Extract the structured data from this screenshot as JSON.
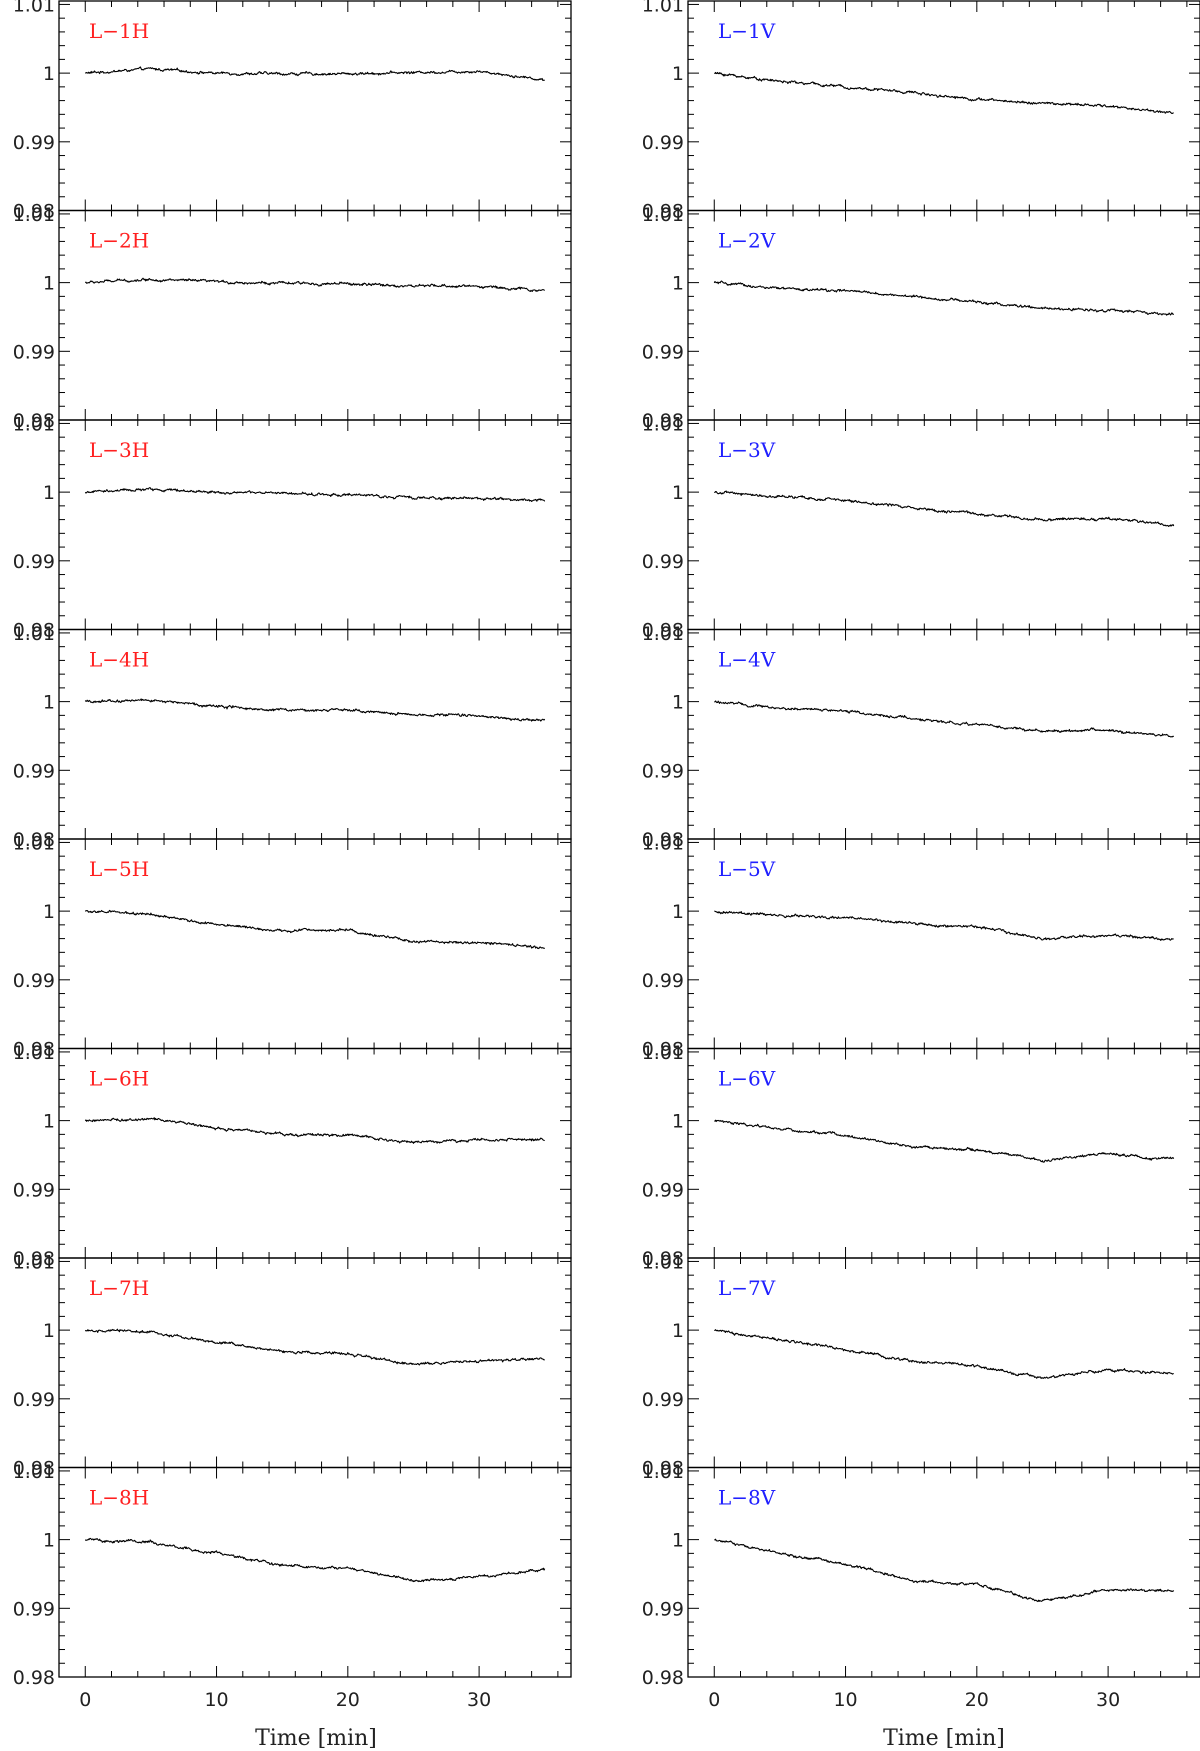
{
  "chart_data": {
    "type": "line",
    "columns": 2,
    "rows": 8,
    "xlim": [
      -2,
      37
    ],
    "ylim": [
      0.98,
      1.0105
    ],
    "x_ticks": [
      "0",
      "10",
      "20",
      "30"
    ],
    "x_tick_values": [
      0,
      10,
      20,
      30
    ],
    "y_ticks": [
      "1.01",
      "1",
      "0.99",
      "0.98"
    ],
    "y_tick_values": [
      1.01,
      1.0,
      0.99,
      0.98
    ],
    "x_axis_labels": [
      "Time [min]",
      "Time [min]"
    ],
    "label_colors": {
      "H": "#ff2020",
      "V": "#2020ff"
    },
    "line_color": "#000000",
    "panels": [
      {
        "label": "L−1H",
        "column": 0,
        "row": 0,
        "x": [
          0,
          5,
          10,
          15,
          20,
          25,
          30,
          35
        ],
        "y": [
          1.0,
          1.0006,
          1.0,
          0.9999,
          0.9999,
          1.0001,
          1.0003,
          0.999
        ]
      },
      {
        "label": "L−1V",
        "column": 1,
        "row": 0,
        "x": [
          0,
          5,
          10,
          15,
          20,
          25,
          30,
          35
        ],
        "y": [
          1.0,
          0.9988,
          0.998,
          0.9972,
          0.9962,
          0.9956,
          0.9952,
          0.9942
        ]
      },
      {
        "label": "L−2H",
        "column": 0,
        "row": 1,
        "x": [
          0,
          5,
          10,
          15,
          20,
          25,
          30,
          35
        ],
        "y": [
          1.0,
          1.0005,
          1.0001,
          0.9999,
          0.9998,
          0.9995,
          0.9995,
          0.9988
        ]
      },
      {
        "label": "L−2V",
        "column": 1,
        "row": 1,
        "x": [
          0,
          5,
          10,
          15,
          20,
          25,
          30,
          35
        ],
        "y": [
          1.0,
          0.9991,
          0.9988,
          0.998,
          0.9972,
          0.9962,
          0.996,
          0.9953
        ]
      },
      {
        "label": "L−3H",
        "column": 0,
        "row": 2,
        "x": [
          0,
          5,
          10,
          15,
          20,
          25,
          30,
          35
        ],
        "y": [
          1.0,
          1.0004,
          1.0,
          0.9998,
          0.9996,
          0.9992,
          0.9991,
          0.9988
        ]
      },
      {
        "label": "L−3V",
        "column": 1,
        "row": 2,
        "x": [
          0,
          5,
          10,
          15,
          20,
          25,
          30,
          35
        ],
        "y": [
          1.0,
          0.9993,
          0.9988,
          0.9978,
          0.9968,
          0.996,
          0.9962,
          0.9952
        ]
      },
      {
        "label": "L−4H",
        "column": 0,
        "row": 3,
        "x": [
          0,
          5,
          10,
          15,
          20,
          25,
          30,
          35
        ],
        "y": [
          1.0,
          1.0002,
          0.9994,
          0.9988,
          0.9987,
          0.998,
          0.998,
          0.9972
        ]
      },
      {
        "label": "L−4V",
        "column": 1,
        "row": 3,
        "x": [
          0,
          5,
          10,
          15,
          20,
          25,
          30,
          35
        ],
        "y": [
          1.0,
          0.999,
          0.9987,
          0.9975,
          0.9967,
          0.9957,
          0.9958,
          0.995
        ]
      },
      {
        "label": "L−5H",
        "column": 0,
        "row": 4,
        "x": [
          0,
          5,
          10,
          15,
          20,
          25,
          30,
          35
        ],
        "y": [
          1.0,
          0.9995,
          0.998,
          0.9972,
          0.9973,
          0.9955,
          0.9955,
          0.9946
        ]
      },
      {
        "label": "L−5V",
        "column": 1,
        "row": 4,
        "x": [
          0,
          5,
          10,
          15,
          20,
          25,
          30,
          35
        ],
        "y": [
          1.0,
          0.9993,
          0.9991,
          0.9981,
          0.9977,
          0.996,
          0.9966,
          0.9958
        ]
      },
      {
        "label": "L−6H",
        "column": 0,
        "row": 5,
        "x": [
          0,
          5,
          10,
          15,
          20,
          25,
          30,
          35
        ],
        "y": [
          1.0,
          1.0002,
          0.9989,
          0.998,
          0.998,
          0.9968,
          0.9972,
          0.9972
        ]
      },
      {
        "label": "L−6V",
        "column": 1,
        "row": 5,
        "x": [
          0,
          5,
          10,
          15,
          20,
          25,
          30,
          35
        ],
        "y": [
          1.0,
          0.9988,
          0.9978,
          0.9962,
          0.9957,
          0.9942,
          0.9952,
          0.9943
        ]
      },
      {
        "label": "L−7H",
        "column": 0,
        "row": 6,
        "x": [
          0,
          5,
          10,
          15,
          20,
          25,
          30,
          35
        ],
        "y": [
          1.0,
          0.9997,
          0.9983,
          0.9969,
          0.9965,
          0.995,
          0.9955,
          0.9957
        ]
      },
      {
        "label": "L−7V",
        "column": 1,
        "row": 6,
        "x": [
          0,
          5,
          10,
          15,
          20,
          25,
          30,
          35
        ],
        "y": [
          1.0,
          0.9985,
          0.9972,
          0.9955,
          0.9948,
          0.993,
          0.9942,
          0.9937
        ]
      },
      {
        "label": "L−8H",
        "column": 0,
        "row": 7,
        "x": [
          0,
          5,
          10,
          15,
          20,
          25,
          30,
          35
        ],
        "y": [
          1.0,
          0.9996,
          0.998,
          0.9962,
          0.9958,
          0.994,
          0.9946,
          0.9958
        ]
      },
      {
        "label": "L−8V",
        "column": 1,
        "row": 7,
        "x": [
          0,
          5,
          10,
          15,
          20,
          25,
          30,
          35
        ],
        "y": [
          1.0,
          0.998,
          0.9965,
          0.994,
          0.9935,
          0.991,
          0.9927,
          0.9925
        ]
      }
    ]
  }
}
